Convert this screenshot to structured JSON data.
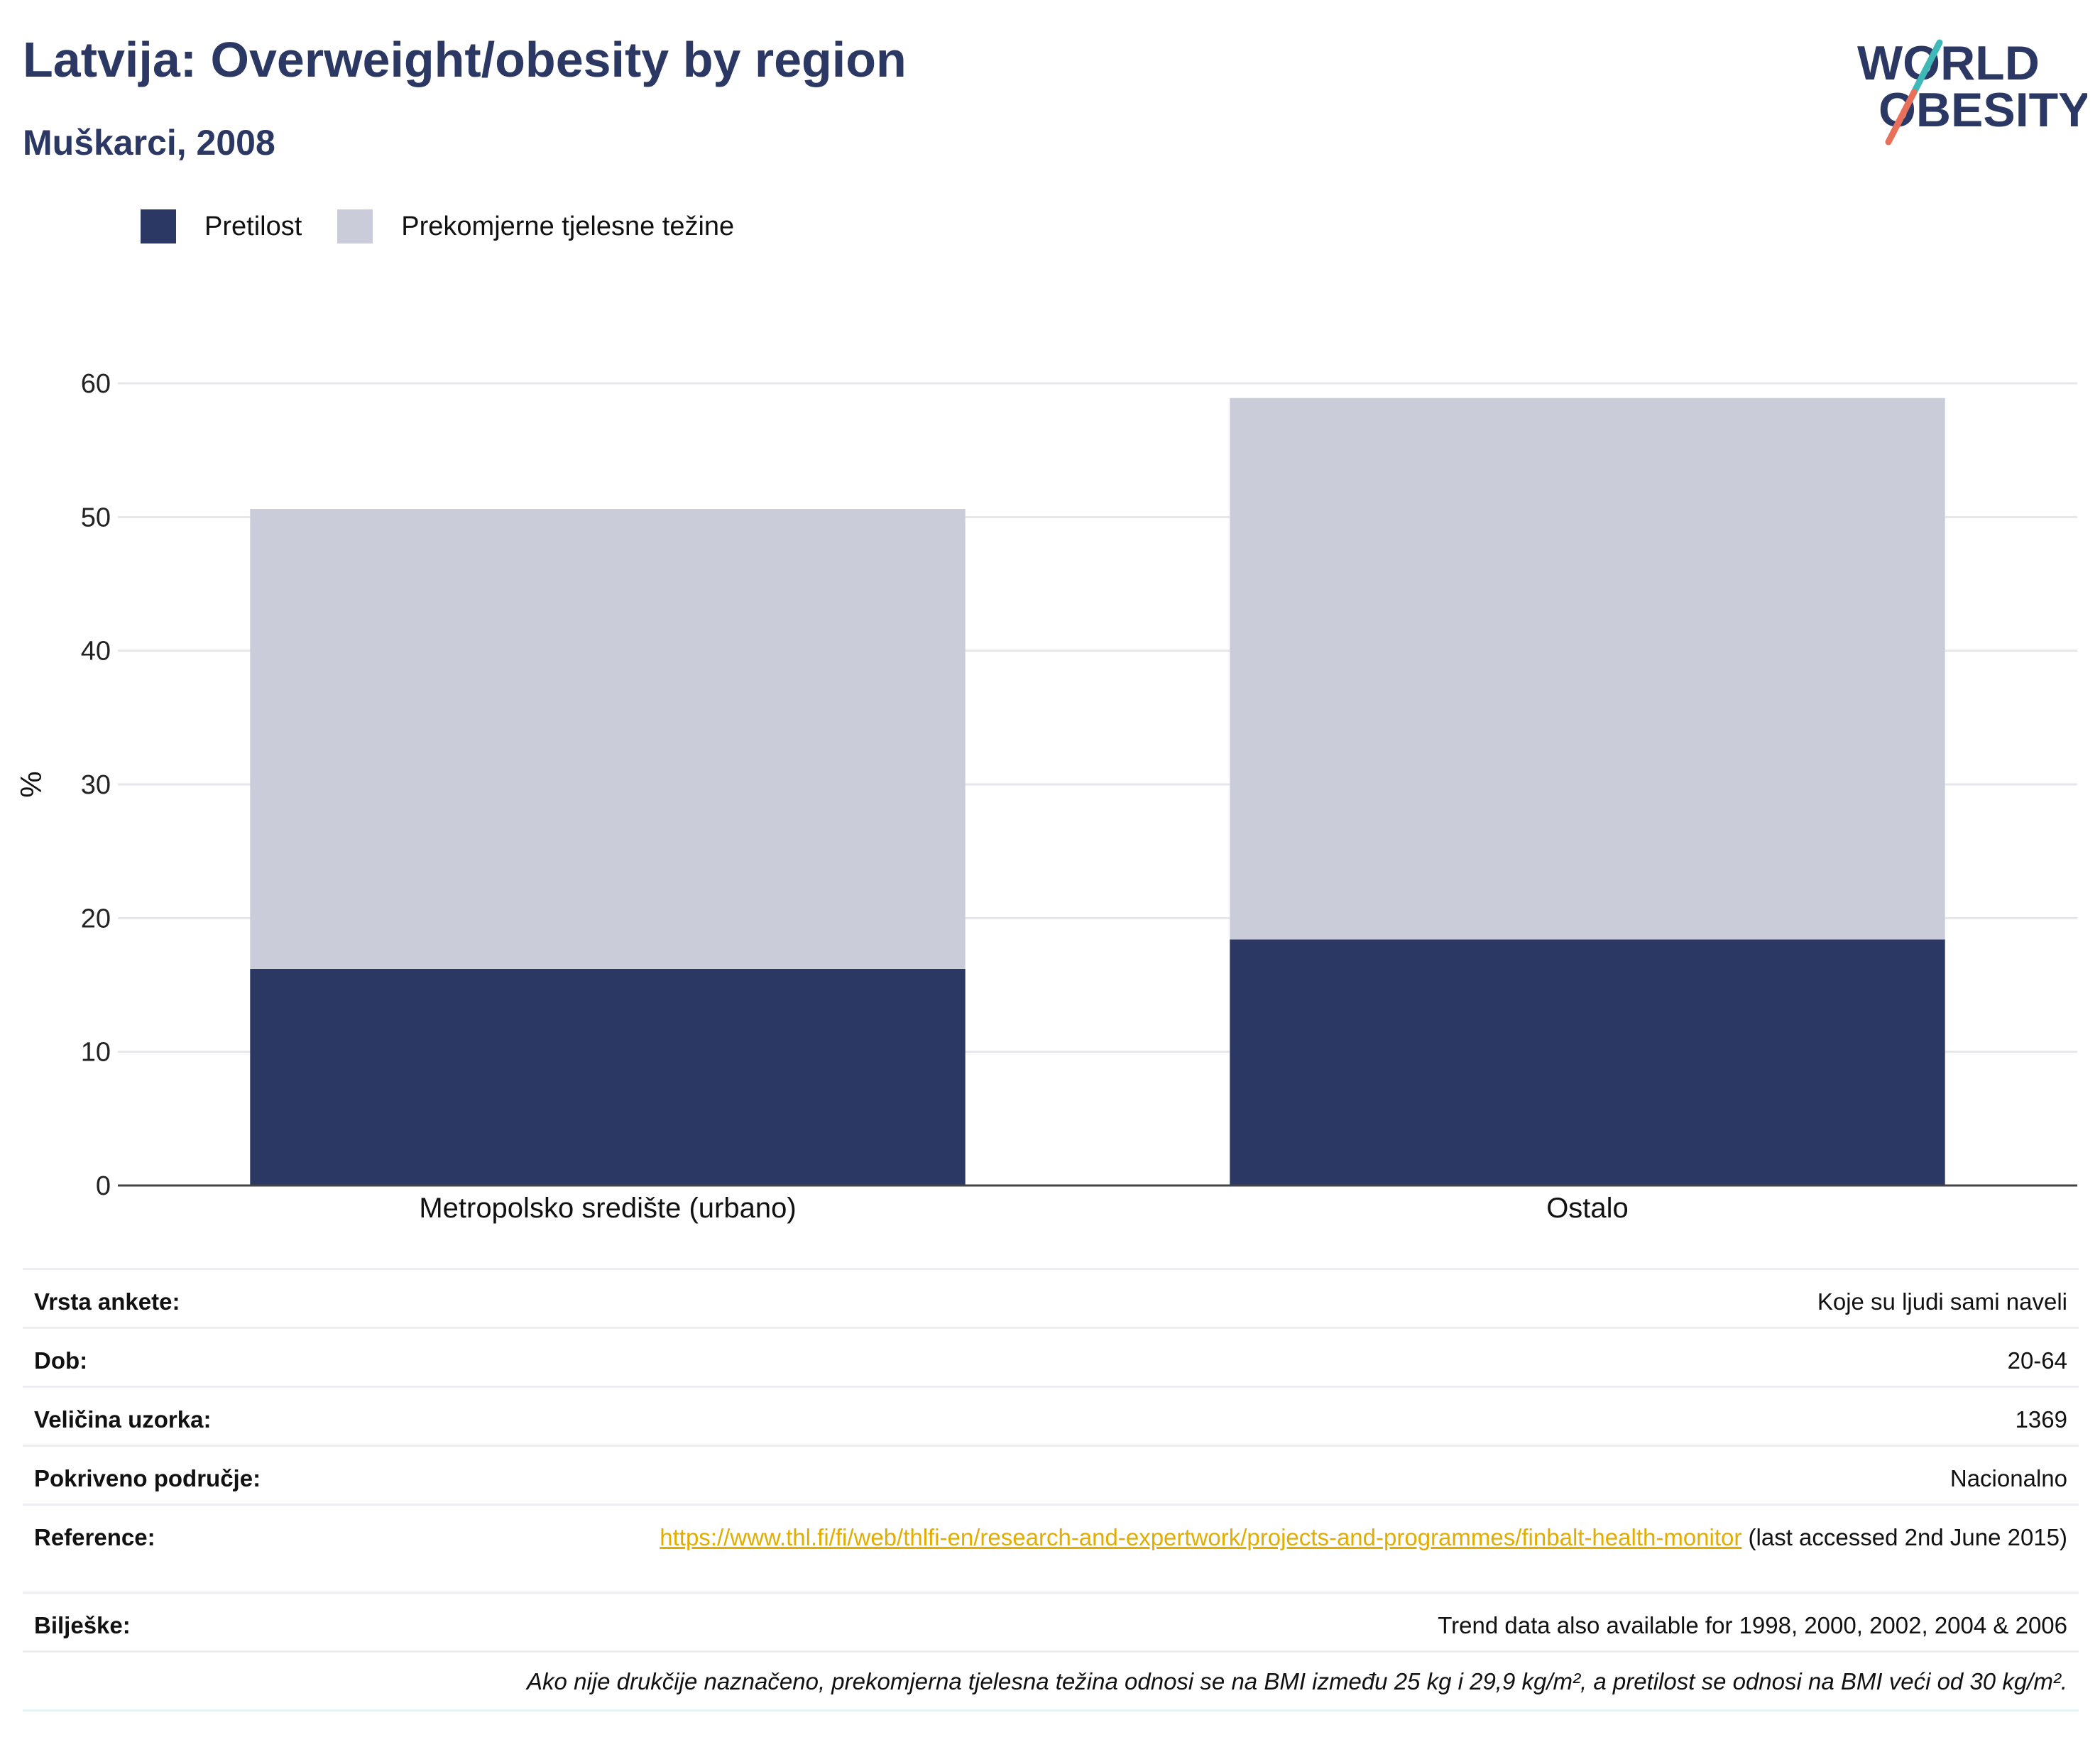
{
  "header": {
    "title": "Latvija: Overweight/obesity by region",
    "subtitle": "Muškarci, 2008",
    "logo_line1": "WORLD",
    "logo_line2": "OBESITY"
  },
  "colors": {
    "obesity": "#2b3864",
    "overweight": "#cacdd9",
    "title": "#2b3864",
    "link": "#e1ad00",
    "logo_teal": "#3fb8b8",
    "logo_coral": "#e8705a"
  },
  "chart_data": {
    "type": "bar",
    "stacked": true,
    "categories": [
      "Metropolsko središte (urbano)",
      "Ostalo"
    ],
    "series": [
      {
        "name": "Pretilost",
        "values": [
          16.2,
          18.4
        ]
      },
      {
        "name": "Prekomjerne tjelesne težine",
        "values": [
          34.4,
          40.5
        ]
      }
    ],
    "ylabel": "%",
    "ylim": [
      0,
      60
    ],
    "yticks": [
      0,
      10,
      20,
      30,
      40,
      50,
      60
    ],
    "grid": true,
    "legend_position": "top-left"
  },
  "meta": {
    "survey_type": {
      "label": "Vrsta ankete:",
      "value": "Koje su ljudi sami naveli"
    },
    "age": {
      "label": "Dob:",
      "value": "20-64"
    },
    "sample_size": {
      "label": "Veličina uzorka:",
      "value": "1369"
    },
    "area": {
      "label": "Pokriveno područje:",
      "value": "Nacionalno"
    },
    "reference": {
      "label": "Reference:",
      "link": "https://www.thl.fi/fi/web/thlfi-en/research-and-expertwork/projects-and-programmes/finbalt-health-monitor",
      "suffix": " (last accessed 2nd June 2015)"
    },
    "notes": {
      "label": "Bilješke:",
      "value": "Trend data also available for 1998, 2000, 2002, 2004 & 2006"
    },
    "footnote": "Ako nije drukčije naznačeno, prekomjerna tjelesna težina odnosi se na BMI između 25 kg i 29,9 kg/m², a pretilost se odnosi na BMI veći od 30 kg/m²."
  }
}
